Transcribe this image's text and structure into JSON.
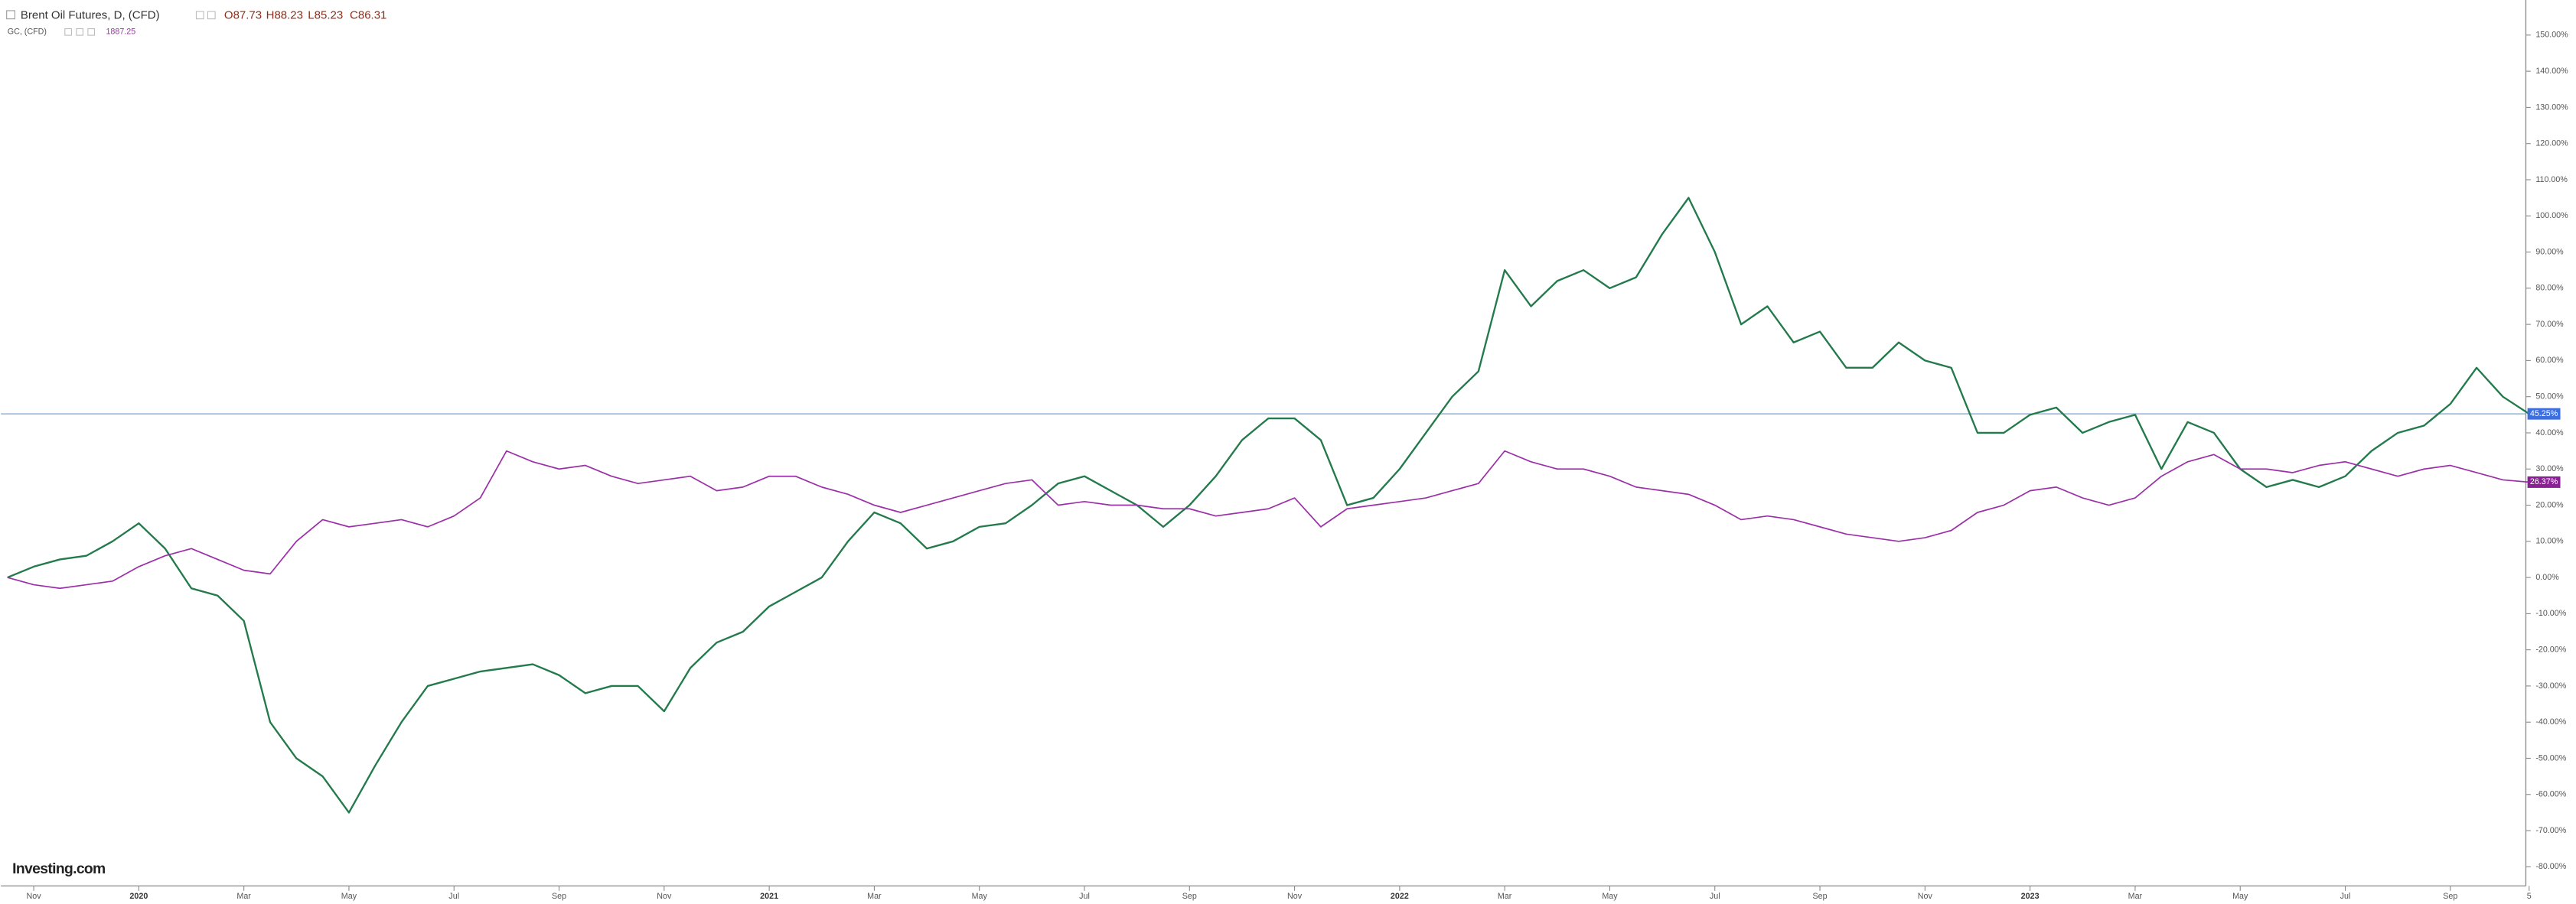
{
  "chart_data": {
    "type": "line",
    "ohlc": [
      "O87.73",
      "H88.23",
      "L85.23",
      "C86.31"
    ],
    "x_labels": [
      "Nov",
      "2020",
      "Mar",
      "May",
      "Jul",
      "Sep",
      "Nov",
      "2021",
      "Mar",
      "May",
      "Jul",
      "Sep",
      "Nov",
      "2022",
      "Mar",
      "May",
      "Jul",
      "Sep",
      "Nov",
      "2023",
      "Mar",
      "May",
      "Jul",
      "Sep",
      "5"
    ],
    "series": [
      {
        "name": "Brent Oil Futures, D, (CFD)",
        "color": "#237a4b",
        "last_label": "45.25%",
        "label_color": "#3d6ee0",
        "values": [
          0,
          3,
          5,
          6,
          10,
          15,
          8,
          -3,
          -5,
          -12,
          -40,
          -50,
          -55,
          -65,
          -52,
          -40,
          -30,
          -28,
          -26,
          -25,
          -24,
          -27,
          -32,
          -30,
          -30,
          -37,
          -25,
          -18,
          -15,
          -8,
          -4,
          0,
          10,
          18,
          15,
          8,
          10,
          14,
          15,
          20,
          26,
          28,
          24,
          20,
          14,
          20,
          28,
          38,
          44,
          44,
          38,
          20,
          22,
          30,
          40,
          50,
          57,
          85,
          75,
          82,
          85,
          80,
          83,
          95,
          105,
          90,
          70,
          75,
          65,
          68,
          58,
          58,
          65,
          60,
          58,
          40,
          40,
          45,
          47,
          40,
          43,
          45,
          30,
          43,
          40,
          30,
          25,
          27,
          25,
          28,
          35,
          40,
          42,
          48,
          58,
          50,
          45.25
        ]
      },
      {
        "name": "GC, (CFD)",
        "quote": "1887.25",
        "color": "#9b30a8",
        "last_label": "26.37%",
        "label_color": "#8a1f96",
        "values": [
          0,
          -2,
          -3,
          -2,
          -1,
          3,
          6,
          8,
          5,
          2,
          1,
          10,
          16,
          14,
          15,
          16,
          14,
          17,
          22,
          35,
          32,
          30,
          31,
          28,
          26,
          27,
          28,
          24,
          25,
          28,
          28,
          25,
          23,
          20,
          18,
          20,
          22,
          24,
          26,
          27,
          20,
          21,
          20,
          20,
          19,
          19,
          17,
          18,
          19,
          22,
          14,
          19,
          20,
          21,
          22,
          24,
          26,
          35,
          32,
          30,
          30,
          28,
          25,
          24,
          23,
          20,
          16,
          17,
          16,
          14,
          12,
          11,
          10,
          11,
          13,
          18,
          20,
          24,
          25,
          22,
          20,
          22,
          28,
          32,
          34,
          30,
          30,
          29,
          31,
          32,
          30,
          28,
          30,
          31,
          29,
          27,
          26.37
        ]
      }
    ],
    "ylim": [
      -85.3,
      159.7
    ],
    "yticks": [
      {
        "value": -80,
        "label": "-80.00%"
      },
      {
        "value": -70,
        "label": "-70.00%"
      },
      {
        "value": -60,
        "label": "-60.00%"
      },
      {
        "value": -50,
        "label": "-50.00%"
      },
      {
        "value": -40,
        "label": "-40.00%"
      },
      {
        "value": -30,
        "label": "-30.00%"
      },
      {
        "value": -20,
        "label": "-20.00%"
      },
      {
        "value": -10,
        "label": "-10.00%"
      },
      {
        "value": 0,
        "label": "0.00%"
      },
      {
        "value": 10,
        "label": "10.00%"
      },
      {
        "value": 20,
        "label": "20.00%"
      },
      {
        "value": 30,
        "label": "30.00%"
      },
      {
        "value": 40,
        "label": "40.00%"
      },
      {
        "value": 50,
        "label": "50.00%"
      },
      {
        "value": 60,
        "label": "60.00%"
      },
      {
        "value": 70,
        "label": "70.00%"
      },
      {
        "value": 80,
        "label": "80.00%"
      },
      {
        "value": 90,
        "label": "90.00%"
      },
      {
        "value": 100,
        "label": "100.00%"
      },
      {
        "value": 110,
        "label": "110.00%"
      },
      {
        "value": 120,
        "label": "120.00%"
      },
      {
        "value": 130,
        "label": "130.00%"
      },
      {
        "value": 140,
        "label": "140.00%"
      },
      {
        "value": 150,
        "label": "150.00%"
      }
    ],
    "watermark": "Investing.com"
  }
}
